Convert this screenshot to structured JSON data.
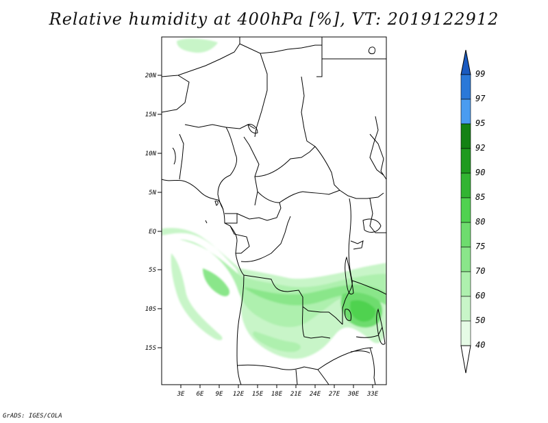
{
  "title": "Relative humidity at 400hPa [%], VT: 2019122912",
  "credit": "GrADS: IGES/COLA",
  "lat_ticks": [
    "20N",
    "15N",
    "10N",
    "5N",
    "EQ",
    "5S",
    "10S",
    "15S"
  ],
  "lon_ticks": [
    "3E",
    "6E",
    "9E",
    "12E",
    "15E",
    "18E",
    "21E",
    "24E",
    "27E",
    "30E",
    "33E"
  ],
  "colorbar": {
    "levels": [
      "40",
      "50",
      "60",
      "70",
      "75",
      "80",
      "85",
      "90",
      "92",
      "95",
      "97",
      "99"
    ],
    "colors": [
      "#ffffff",
      "#e6fbe6",
      "#c8f5c8",
      "#aef0ae",
      "#8ae68a",
      "#6edc6e",
      "#50d250",
      "#32b432",
      "#1f9a1f",
      "#148214",
      "#4a9cf0",
      "#2a78d8",
      "#1a5ac0"
    ]
  }
}
